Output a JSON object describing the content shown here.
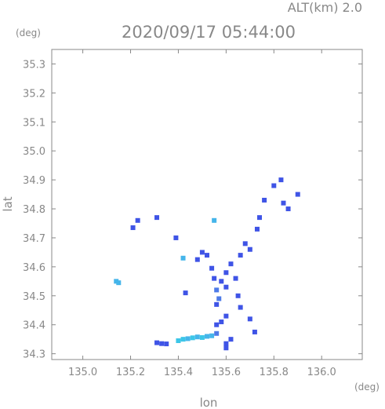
{
  "chart_data": {
    "type": "scatter",
    "title": "2020/09/17 05:44:00",
    "altitude_label": "ALT(km) 2.0",
    "xlabel": "lon",
    "ylabel": "lat",
    "x_unit": "(deg)",
    "y_unit": "(deg)",
    "xlim": [
      134.87,
      136.17
    ],
    "ylim": [
      34.28,
      35.35
    ],
    "x_ticks": [
      "135.0",
      "135.2",
      "135.4",
      "135.6",
      "135.8",
      "136.0"
    ],
    "y_ticks": [
      "34.3",
      "34.4",
      "34.5",
      "34.6",
      "34.7",
      "34.8",
      "34.9",
      "35.0",
      "35.1",
      "35.2",
      "35.3"
    ],
    "grid": false,
    "colors": {
      "axis": "#888888",
      "text": "#888888",
      "echo_strong": "#3f54e6",
      "echo_medium": "#4e7be8",
      "echo_light": "#45b5ea",
      "echo_cyan": "#3cc6e8"
    },
    "series": [
      {
        "values": [
          {
            "x": 135.14,
            "y": 34.55,
            "level": "light"
          },
          {
            "x": 135.15,
            "y": 34.545,
            "level": "light"
          },
          {
            "x": 135.21,
            "y": 34.735,
            "level": "strong"
          },
          {
            "x": 135.23,
            "y": 34.76,
            "level": "strong"
          },
          {
            "x": 135.31,
            "y": 34.77,
            "level": "strong"
          },
          {
            "x": 135.31,
            "y": 34.338,
            "level": "strong"
          },
          {
            "x": 135.33,
            "y": 34.335,
            "level": "strong"
          },
          {
            "x": 135.35,
            "y": 34.334,
            "level": "strong"
          },
          {
            "x": 135.39,
            "y": 34.7,
            "level": "strong"
          },
          {
            "x": 135.4,
            "y": 34.345,
            "level": "cyan"
          },
          {
            "x": 135.42,
            "y": 34.35,
            "level": "cyan"
          },
          {
            "x": 135.44,
            "y": 34.352,
            "level": "light"
          },
          {
            "x": 135.46,
            "y": 34.355,
            "level": "cyan"
          },
          {
            "x": 135.48,
            "y": 34.358,
            "level": "light"
          },
          {
            "x": 135.5,
            "y": 34.356,
            "level": "cyan"
          },
          {
            "x": 135.52,
            "y": 34.36,
            "level": "light"
          },
          {
            "x": 135.54,
            "y": 34.362,
            "level": "light"
          },
          {
            "x": 135.56,
            "y": 34.37,
            "level": "medium"
          },
          {
            "x": 135.6,
            "y": 34.335,
            "level": "strong"
          },
          {
            "x": 135.42,
            "y": 34.63,
            "level": "light"
          },
          {
            "x": 135.43,
            "y": 34.51,
            "level": "strong"
          },
          {
            "x": 135.48,
            "y": 34.625,
            "level": "strong"
          },
          {
            "x": 135.5,
            "y": 34.65,
            "level": "strong"
          },
          {
            "x": 135.52,
            "y": 34.64,
            "level": "strong"
          },
          {
            "x": 135.54,
            "y": 34.595,
            "level": "strong"
          },
          {
            "x": 135.55,
            "y": 34.56,
            "level": "strong"
          },
          {
            "x": 135.56,
            "y": 34.52,
            "level": "medium"
          },
          {
            "x": 135.57,
            "y": 34.49,
            "level": "medium"
          },
          {
            "x": 135.56,
            "y": 34.47,
            "level": "strong"
          },
          {
            "x": 135.58,
            "y": 34.55,
            "level": "strong"
          },
          {
            "x": 135.6,
            "y": 34.53,
            "level": "strong"
          },
          {
            "x": 135.6,
            "y": 34.58,
            "level": "strong"
          },
          {
            "x": 135.62,
            "y": 34.61,
            "level": "strong"
          },
          {
            "x": 135.64,
            "y": 34.56,
            "level": "strong"
          },
          {
            "x": 135.65,
            "y": 34.5,
            "level": "strong"
          },
          {
            "x": 135.66,
            "y": 34.46,
            "level": "strong"
          },
          {
            "x": 135.68,
            "y": 34.68,
            "level": "strong"
          },
          {
            "x": 135.7,
            "y": 34.66,
            "level": "strong"
          },
          {
            "x": 135.66,
            "y": 34.64,
            "level": "strong"
          },
          {
            "x": 135.6,
            "y": 34.43,
            "level": "strong"
          },
          {
            "x": 135.58,
            "y": 34.41,
            "level": "strong"
          },
          {
            "x": 135.56,
            "y": 34.4,
            "level": "strong"
          },
          {
            "x": 135.7,
            "y": 34.42,
            "level": "strong"
          },
          {
            "x": 135.73,
            "y": 34.73,
            "level": "strong"
          },
          {
            "x": 135.74,
            "y": 34.77,
            "level": "strong"
          },
          {
            "x": 135.76,
            "y": 34.83,
            "level": "strong"
          },
          {
            "x": 135.8,
            "y": 34.88,
            "level": "strong"
          },
          {
            "x": 135.83,
            "y": 34.9,
            "level": "strong"
          },
          {
            "x": 135.84,
            "y": 34.82,
            "level": "strong"
          },
          {
            "x": 135.86,
            "y": 34.8,
            "level": "strong"
          },
          {
            "x": 135.9,
            "y": 34.85,
            "level": "strong"
          },
          {
            "x": 135.55,
            "y": 34.76,
            "level": "light"
          },
          {
            "x": 135.6,
            "y": 34.32,
            "level": "strong"
          },
          {
            "x": 135.62,
            "y": 34.35,
            "level": "strong"
          },
          {
            "x": 135.72,
            "y": 34.375,
            "level": "strong"
          }
        ]
      }
    ]
  }
}
